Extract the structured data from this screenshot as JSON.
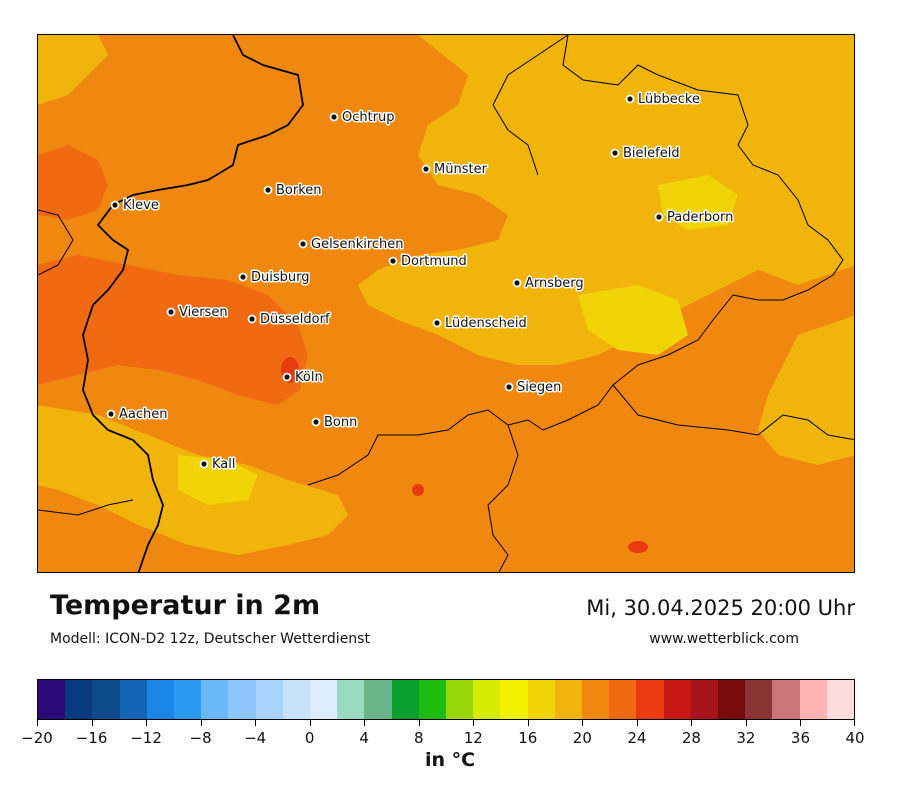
{
  "map": {
    "title": "Temperatur in 2m",
    "model": "Modell: ICON-D2 12z, Deutscher Wetterdienst",
    "datetime": "Mi, 30.04.2025 20:00 Uhr",
    "website": "www.wetterblick.com",
    "cities": [
      {
        "name": "Lübbecke"
      },
      {
        "name": "Ochtrup"
      },
      {
        "name": "Bielefeld"
      },
      {
        "name": "Münster"
      },
      {
        "name": "Borken"
      },
      {
        "name": "Kleve"
      },
      {
        "name": "Paderborn"
      },
      {
        "name": "Gelsenkirchen"
      },
      {
        "name": "Dortmund"
      },
      {
        "name": "Duisburg"
      },
      {
        "name": "Arnsberg"
      },
      {
        "name": "Viersen"
      },
      {
        "name": "Düsseldorf"
      },
      {
        "name": "Lüdenscheid"
      },
      {
        "name": "Köln"
      },
      {
        "name": "Siegen"
      },
      {
        "name": "Aachen"
      },
      {
        "name": "Bonn"
      },
      {
        "name": "Kall"
      }
    ]
  },
  "legend": {
    "unit": "in °C",
    "ticks": [
      "−20",
      "−16",
      "−12",
      "−8",
      "−4",
      "0",
      "4",
      "8",
      "12",
      "16",
      "20",
      "24",
      "28",
      "32",
      "36",
      "40"
    ],
    "min": -20,
    "max": 40,
    "step": 2,
    "colors": [
      "#2d0a7a",
      "#0a3a80",
      "#0c4a8c",
      "#1466b4",
      "#1a86e8",
      "#2a9af5",
      "#6ab8f8",
      "#8cc6fa",
      "#a8d4fb",
      "#c8e2fc",
      "#dceefe",
      "#98dcc0",
      "#6ab48a",
      "#0aa030",
      "#20bb10",
      "#98d60a",
      "#d4ea00",
      "#f0f000",
      "#f0d408",
      "#f0b40a",
      "#f08810",
      "#f06a12",
      "#e83a0e",
      "#c81814",
      "#a8141c",
      "#780c0c",
      "#8a3434",
      "#c87878",
      "#ffb4b4",
      "#ffdcdc"
    ]
  }
}
